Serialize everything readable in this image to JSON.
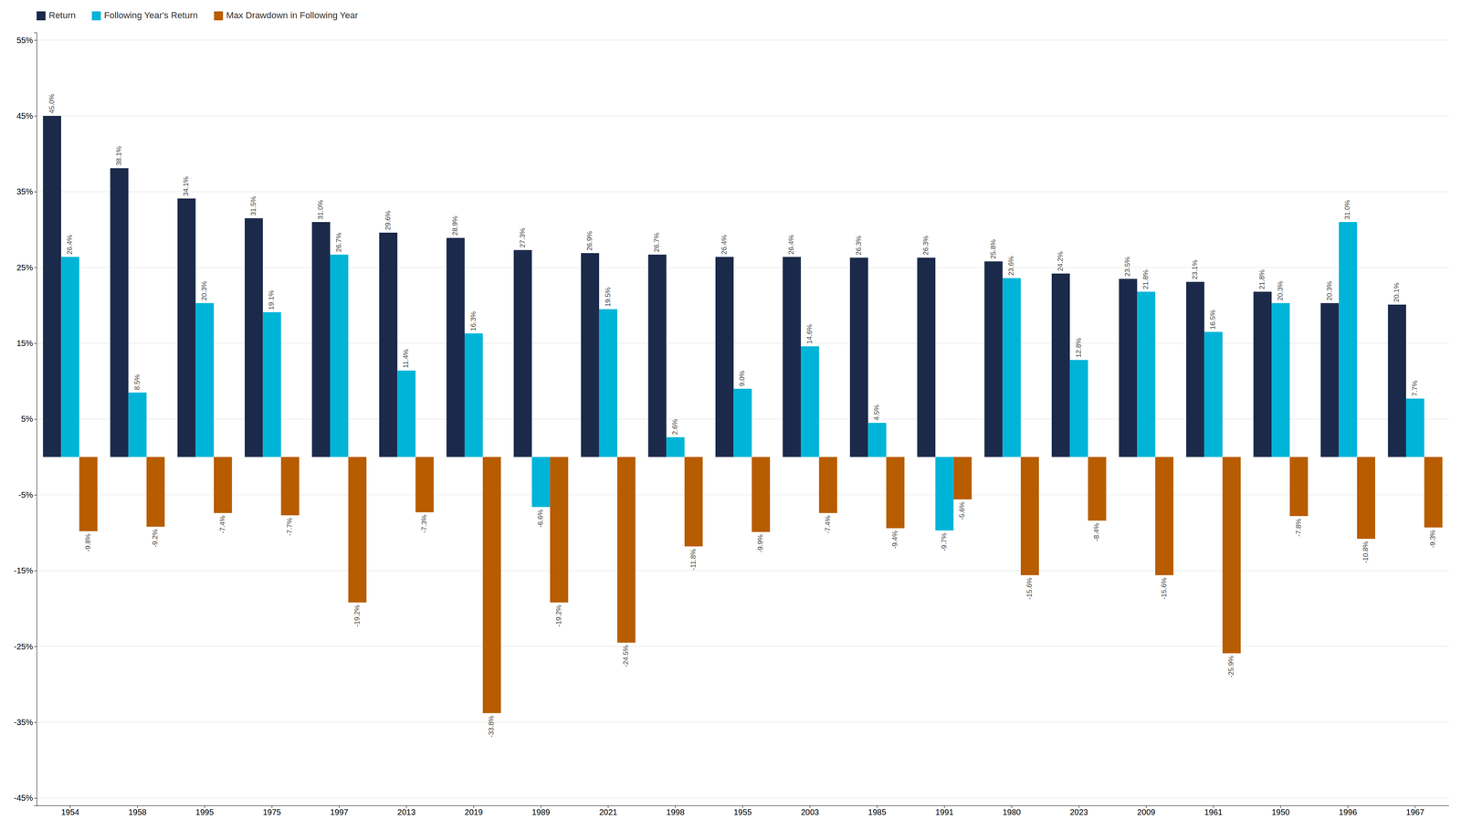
{
  "chart_data": {
    "type": "bar",
    "categories": [
      "1954",
      "1958",
      "1995",
      "1975",
      "1997",
      "2013",
      "2019",
      "1989",
      "2021",
      "1998",
      "1955",
      "2003",
      "1985",
      "1991",
      "1980",
      "2023",
      "2009",
      "1961",
      "1950",
      "1996",
      "1967"
    ],
    "series": [
      {
        "name": "Return",
        "color": "#1b2a4a",
        "values": [
          45.0,
          38.1,
          34.1,
          31.5,
          31.0,
          29.6,
          28.9,
          27.3,
          26.9,
          26.7,
          26.4,
          26.4,
          26.3,
          26.3,
          25.8,
          24.2,
          23.5,
          23.1,
          21.8,
          20.3,
          20.1
        ],
        "value_labels": [
          "45.0%",
          "38.1%",
          "34.1%",
          "31.5%",
          "31.0%",
          "29.6%",
          "28.9%",
          "27.3%",
          "26.9%",
          "26.7%",
          "26.4%",
          "26.4%",
          "26.3%",
          "26.3%",
          "25.8%",
          "24.2%",
          "23.5%",
          "23.1%",
          "21.8%",
          "20.3%",
          "20.1%"
        ]
      },
      {
        "name": "Following Year's Return",
        "color": "#00b4d8",
        "values": [
          26.4,
          8.5,
          20.3,
          19.1,
          26.7,
          11.4,
          16.3,
          -6.6,
          19.5,
          2.6,
          9.0,
          14.6,
          4.5,
          -9.7,
          23.6,
          12.8,
          21.8,
          16.5,
          20.3,
          31.0,
          7.7
        ],
        "value_labels": [
          "26.4%",
          "8.5%",
          "20.3%",
          "19.1%",
          "26.7%",
          "11.4%",
          "16.3%",
          "-6.6%",
          "19.5%",
          "2.6%",
          "9.0%",
          "14.6%",
          "4.5%",
          "-9.7%",
          "23.6%",
          "12.8%",
          "21.8%",
          "16.5%",
          "20.3%",
          "31.0%",
          "7.7%"
        ]
      },
      {
        "name": "Max Drawdown in Following Year",
        "color": "#b85c00",
        "values": [
          -9.8,
          -9.2,
          -7.4,
          -7.7,
          -19.2,
          -7.3,
          -33.8,
          -19.2,
          -24.5,
          -11.8,
          -9.9,
          -7.4,
          -9.4,
          -5.6,
          -15.6,
          -8.4,
          -15.6,
          -25.9,
          -7.8,
          -10.8,
          -9.3
        ],
        "value_labels": [
          "-9.8%",
          "-9.2%",
          "-7.4%",
          "-7.7%",
          "-19.2%",
          "-7.3%",
          "-33.8%",
          "-19.2%",
          "-24.5%",
          "-11.8%",
          "-9.9%",
          "-7.4%",
          "-9.4%",
          "-5.6%",
          "-15.6%",
          "-8.4%",
          "-15.6%",
          "-25.9%",
          "-7.8%",
          "-10.8%",
          "-9.3%"
        ]
      }
    ],
    "ylim": [
      -46,
      56
    ],
    "yticks": [
      {
        "value": -45,
        "label": "-45%"
      },
      {
        "value": -35,
        "label": "-35%"
      },
      {
        "value": -25,
        "label": "-25%"
      },
      {
        "value": -15,
        "label": "-15%"
      },
      {
        "value": -5,
        "label": "-5%"
      },
      {
        "value": 5,
        "label": "5%"
      },
      {
        "value": 15,
        "label": "15%"
      },
      {
        "value": 25,
        "label": "25%"
      },
      {
        "value": 35,
        "label": "35%"
      },
      {
        "value": 45,
        "label": "45%"
      },
      {
        "value": 55,
        "label": "55%"
      }
    ],
    "grid": true,
    "legend": "top-left",
    "data_labels": true
  }
}
